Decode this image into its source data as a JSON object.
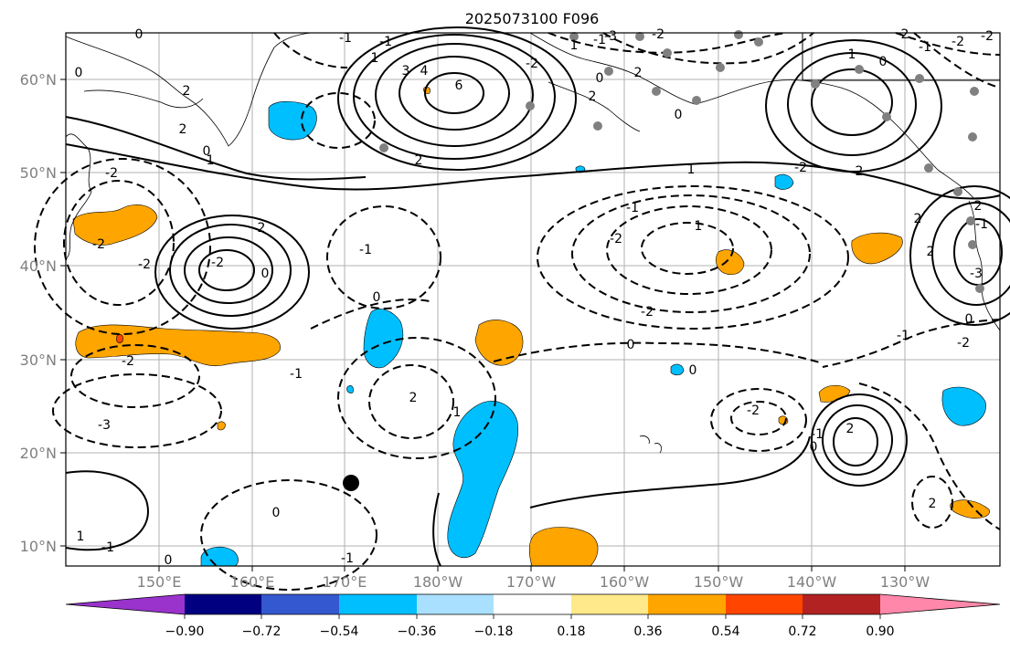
{
  "title": "2025073100 F096",
  "lat_labels": [
    "60°N",
    "50°N",
    "40°N",
    "30°N",
    "20°N",
    "10°N"
  ],
  "lon_labels": [
    "150°E",
    "160°E",
    "170°E",
    "180°W",
    "170°W",
    "160°W",
    "150°W",
    "140°W",
    "130°W"
  ],
  "colorbar": {
    "colors": [
      "#9933cc",
      "#000080",
      "#3458d0",
      "#00bfff",
      "#aae0ff",
      "#ffffff",
      "#ffe98a",
      "#ffa500",
      "#ff4500",
      "#b22222",
      "#ff88aa"
    ],
    "ticks": [
      "−0.90",
      "−0.72",
      "−0.54",
      "−0.36",
      "−0.18",
      "0.18",
      "0.36",
      "0.54",
      "0.72",
      "0.90"
    ]
  },
  "contour_labels": [
    "0",
    "-1",
    "-1",
    "1",
    "3",
    "4",
    "6",
    "2",
    "2",
    "2",
    "0",
    "-2",
    "1",
    "-2",
    "0",
    "2",
    "1",
    "-1",
    "-2",
    "-3",
    "2",
    "0",
    "1",
    "-1",
    "1",
    "-2",
    "0",
    "2",
    "2",
    "-2",
    "-2",
    "2",
    "-2",
    "0",
    "-2",
    "-1",
    "-2",
    "-1",
    "1",
    "-3",
    "0",
    "-2",
    "-1",
    "0",
    "-2",
    "-2",
    "2",
    "0",
    "2",
    "-1",
    "2",
    "1",
    "0",
    "-3",
    "-2",
    "2",
    "-1",
    "0",
    "0",
    "1",
    "-1",
    "2",
    "2",
    "-2",
    "-1",
    "0",
    "-1",
    "0"
  ],
  "colors": {
    "grid": "#b0b0b0",
    "negative_fill": "#00bfff",
    "positive_fill": "#ffa500",
    "strong_positive": "#ff4500",
    "station_marker": "#808080",
    "storm_marker": "#000000"
  }
}
